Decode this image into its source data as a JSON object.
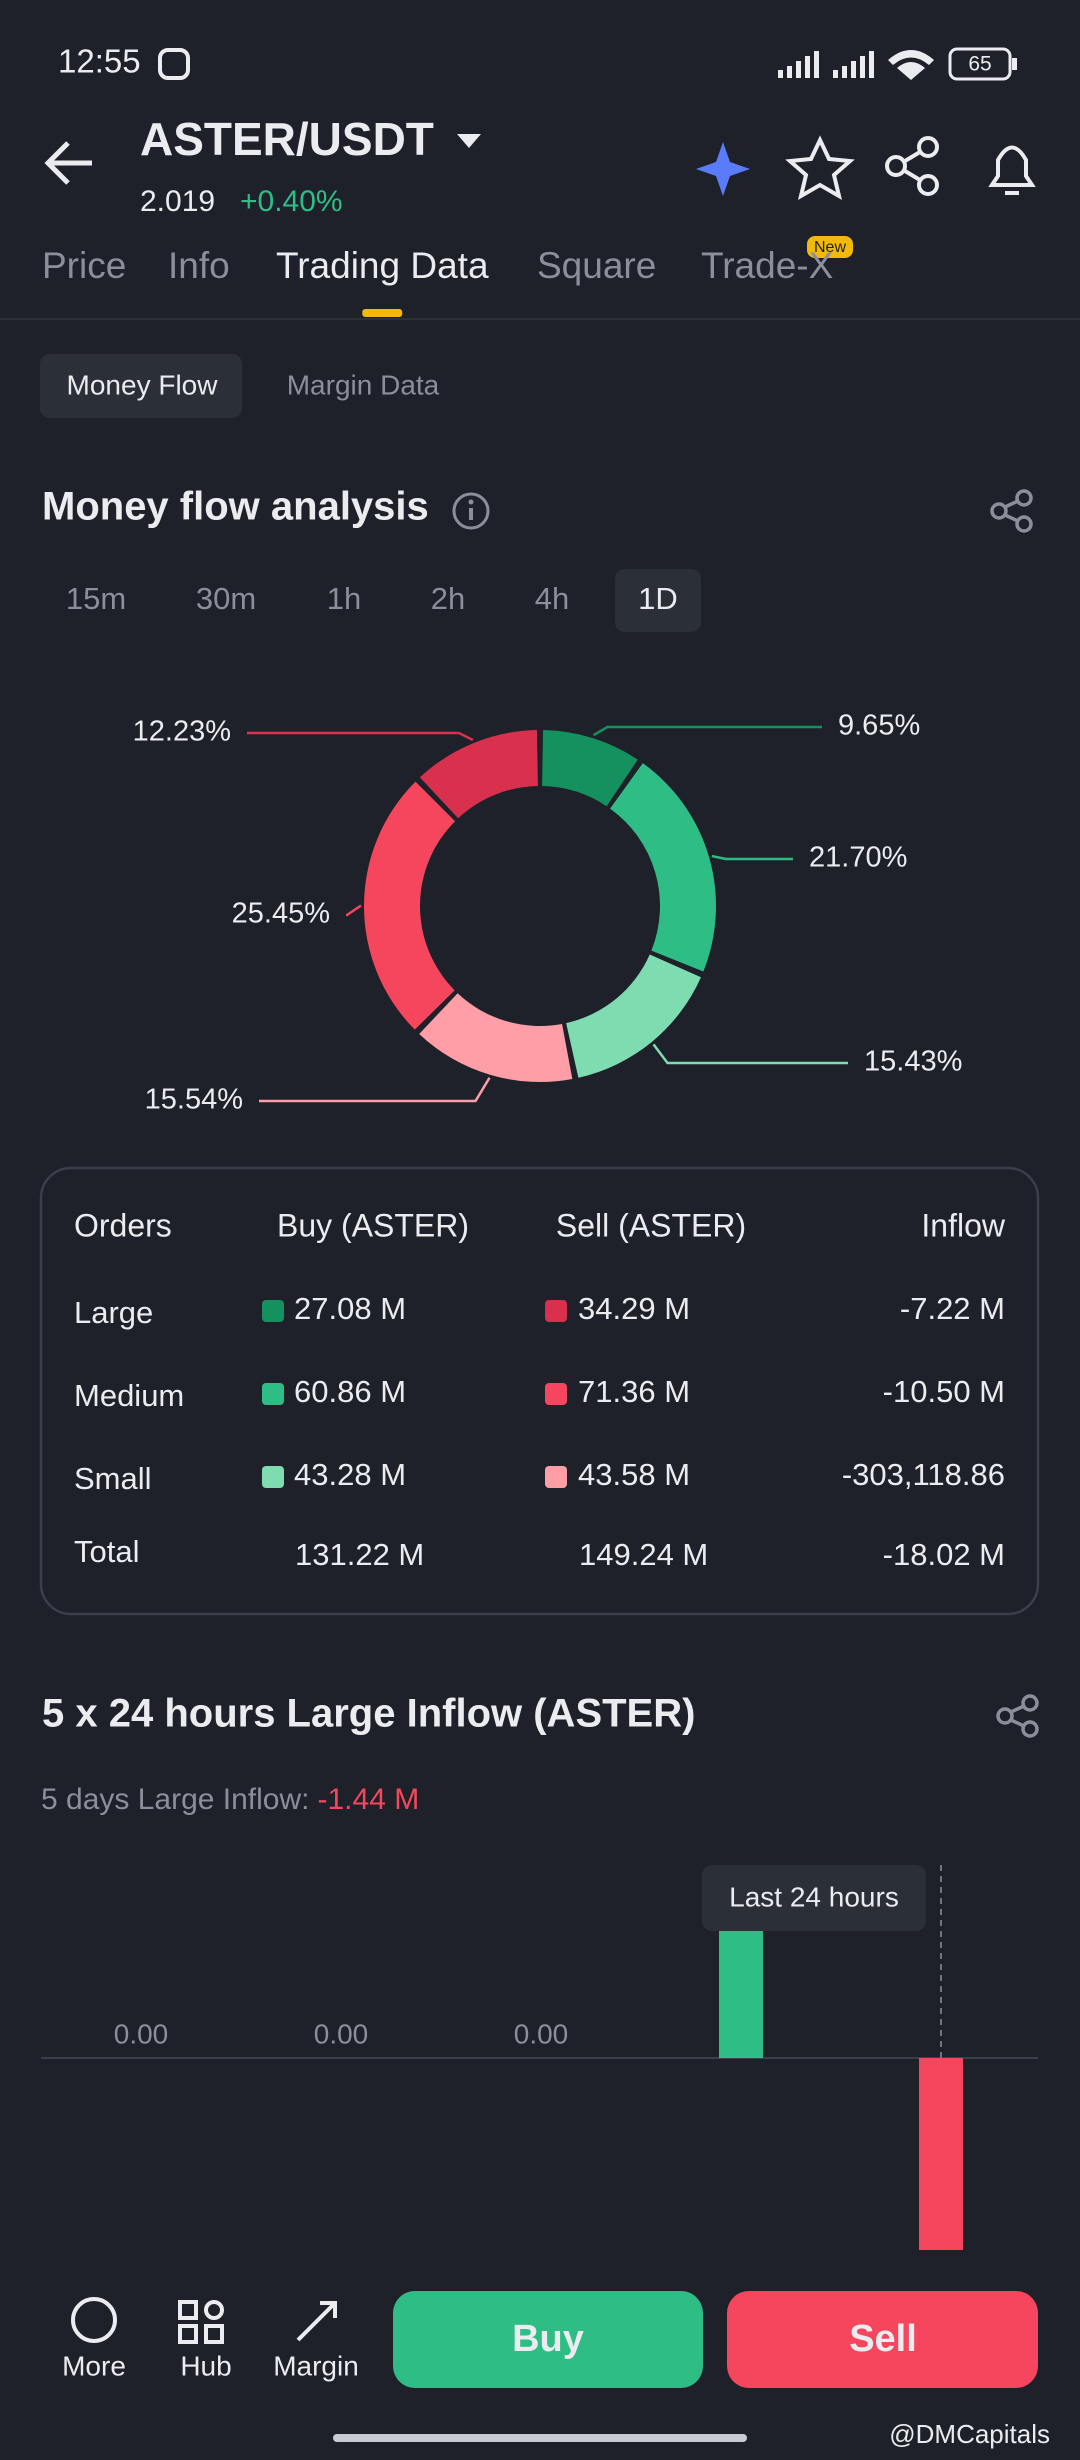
{
  "status_bar": {
    "time": "12:55",
    "battery": "65"
  },
  "header": {
    "pair": "ASTER/USDT",
    "price": "2.019",
    "change": "+0.40%"
  },
  "tabs": [
    "Price",
    "Info",
    "Trading Data",
    "Square",
    "Trade-X"
  ],
  "tab_badge": "New",
  "selected_tab": 2,
  "subtabs": [
    "Money Flow",
    "Margin Data"
  ],
  "section_title": "Money flow analysis",
  "intervals": [
    "15m",
    "30m",
    "1h",
    "2h",
    "4h",
    "1D"
  ],
  "selected_interval": 5,
  "table": {
    "headers": [
      "Orders",
      "Buy (ASTER)",
      "Sell (ASTER)",
      "Inflow"
    ],
    "rows": [
      [
        "Large",
        "27.08 M",
        "34.29 M",
        "-7.22 M"
      ],
      [
        "Medium",
        "60.86 M",
        "71.36 M",
        "-10.50 M"
      ],
      [
        "Small",
        "43.28 M",
        "43.58 M",
        "-303,118.86"
      ],
      [
        "Total",
        "131.22 M",
        "149.24 M",
        "-18.02 M"
      ]
    ]
  },
  "chart_data": [
    {
      "type": "donut",
      "values": [
        9.65,
        21.7,
        15.43,
        15.54,
        25.45,
        12.23
      ],
      "value_labels": [
        "9.65%",
        "21.70%",
        "15.43%",
        "15.54%",
        "25.45%",
        "12.23%"
      ],
      "colors": [
        "#14915f",
        "#2ebd85",
        "#7fdcb1",
        "#ff9ea6",
        "#f6465d",
        "#d9304e"
      ]
    },
    {
      "type": "bar",
      "title": "5 x 24 hours Large Inflow (ASTER)",
      "subtitle": "5 days Large Inflow:",
      "subtitle_value": "-1.44 M",
      "values": [
        0,
        0,
        0,
        5.35,
        -6.79
      ],
      "value_labels": [
        "0.00",
        "0.00",
        "0.00",
        null,
        null
      ],
      "colors": {
        "positive": "#2ebd85",
        "negative": "#f6465d"
      },
      "annotation": "Last 24 hours"
    }
  ],
  "nav": [
    "More",
    "Hub",
    "Margin"
  ],
  "buttons": {
    "buy": "Buy",
    "sell": "Sell"
  },
  "watermark": "@DMCapitals"
}
